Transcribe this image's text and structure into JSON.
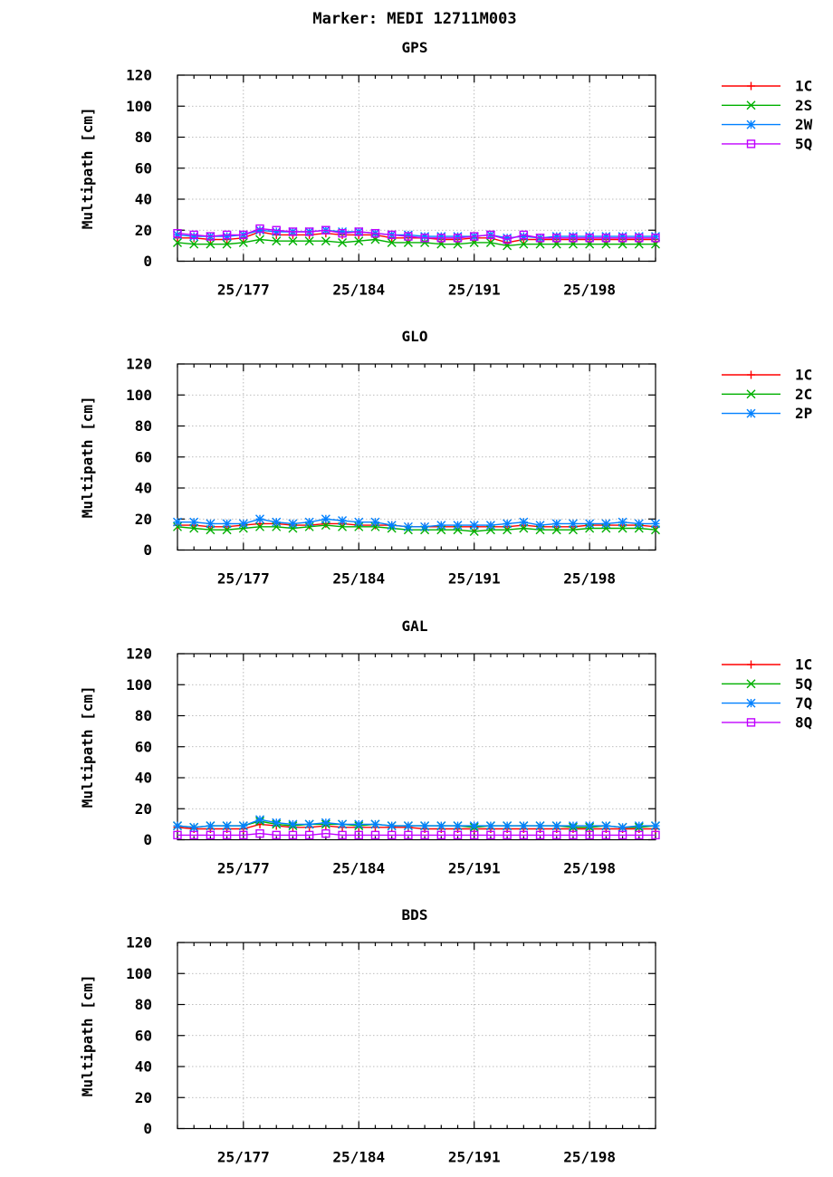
{
  "title": "Marker: MEDI 12711M003",
  "x_tick_labels": [
    "25/177",
    "25/184",
    "25/191",
    "25/198"
  ],
  "chart_data": [
    {
      "type": "line",
      "title": "GPS",
      "ylabel": "Multipath [cm]",
      "ylim": [
        0,
        120
      ],
      "yticks": [
        0,
        20,
        40,
        60,
        80,
        100,
        120
      ],
      "x_range": [
        173,
        202
      ],
      "x_ticks": [
        177,
        184,
        191,
        198
      ],
      "grid": true,
      "legend_position": "right",
      "series": [
        {
          "name": "1C",
          "color": "#ff0000",
          "marker": "plus",
          "x": [
            173,
            174,
            175,
            176,
            177,
            178,
            179,
            180,
            181,
            182,
            183,
            184,
            185,
            186,
            187,
            188,
            189,
            190,
            191,
            192,
            193,
            194,
            195,
            196,
            197,
            198,
            199,
            200,
            201,
            202
          ],
          "values": [
            15,
            15,
            14,
            14,
            15,
            19,
            17,
            17,
            17,
            18,
            17,
            17,
            17,
            15,
            15,
            15,
            14,
            14,
            15,
            15,
            12,
            14,
            14,
            14,
            14,
            14,
            14,
            14,
            14,
            14
          ]
        },
        {
          "name": "2S",
          "color": "#00b000",
          "marker": "x",
          "x": [
            173,
            174,
            175,
            176,
            177,
            178,
            179,
            180,
            181,
            182,
            183,
            184,
            185,
            186,
            187,
            188,
            189,
            190,
            191,
            192,
            193,
            194,
            195,
            196,
            197,
            198,
            199,
            200,
            201,
            202
          ],
          "values": [
            12,
            11,
            11,
            11,
            12,
            14,
            13,
            13,
            13,
            13,
            12,
            13,
            14,
            12,
            12,
            12,
            11,
            11,
            12,
            12,
            10,
            11,
            11,
            11,
            11,
            11,
            11,
            11,
            11,
            11
          ]
        },
        {
          "name": "2W",
          "color": "#0080ff",
          "marker": "star",
          "x": [
            173,
            174,
            175,
            176,
            177,
            178,
            179,
            180,
            181,
            182,
            183,
            184,
            185,
            186,
            187,
            188,
            189,
            190,
            191,
            192,
            193,
            194,
            195,
            196,
            197,
            198,
            199,
            200,
            201,
            202
          ],
          "values": [
            17,
            16,
            16,
            16,
            17,
            20,
            19,
            19,
            19,
            20,
            19,
            19,
            18,
            17,
            17,
            16,
            16,
            16,
            16,
            17,
            15,
            16,
            15,
            16,
            16,
            16,
            16,
            16,
            16,
            16
          ]
        },
        {
          "name": "5Q",
          "color": "#c000ff",
          "marker": "square",
          "x": [
            173,
            174,
            175,
            176,
            177,
            178,
            179,
            180,
            181,
            182,
            183,
            184,
            185,
            186,
            187,
            188,
            189,
            190,
            191,
            192,
            193,
            194,
            195,
            196,
            197,
            198,
            199,
            200,
            201,
            202
          ],
          "values": [
            18,
            17,
            16,
            17,
            17,
            21,
            20,
            19,
            19,
            20,
            18,
            19,
            18,
            17,
            16,
            15,
            15,
            15,
            16,
            17,
            14,
            17,
            15,
            15,
            15,
            15,
            15,
            15,
            15,
            15
          ]
        }
      ]
    },
    {
      "type": "line",
      "title": "GLO",
      "ylabel": "Multipath [cm]",
      "ylim": [
        0,
        120
      ],
      "yticks": [
        0,
        20,
        40,
        60,
        80,
        100,
        120
      ],
      "x_range": [
        173,
        202
      ],
      "x_ticks": [
        177,
        184,
        191,
        198
      ],
      "grid": true,
      "legend_position": "right",
      "series": [
        {
          "name": "1C",
          "color": "#ff0000",
          "marker": "plus",
          "x": [
            173,
            174,
            175,
            176,
            177,
            178,
            179,
            180,
            181,
            182,
            183,
            184,
            185,
            186,
            187,
            188,
            189,
            190,
            191,
            192,
            193,
            194,
            195,
            196,
            197,
            198,
            199,
            200,
            201,
            202
          ],
          "values": [
            16,
            16,
            15,
            15,
            16,
            17,
            17,
            16,
            16,
            17,
            17,
            16,
            16,
            16,
            15,
            15,
            15,
            15,
            15,
            15,
            15,
            16,
            15,
            15,
            15,
            16,
            16,
            16,
            16,
            15
          ]
        },
        {
          "name": "2C",
          "color": "#00b000",
          "marker": "x",
          "x": [
            173,
            174,
            175,
            176,
            177,
            178,
            179,
            180,
            181,
            182,
            183,
            184,
            185,
            186,
            187,
            188,
            189,
            190,
            191,
            192,
            193,
            194,
            195,
            196,
            197,
            198,
            199,
            200,
            201,
            202
          ],
          "values": [
            15,
            14,
            13,
            13,
            14,
            15,
            15,
            14,
            15,
            16,
            15,
            15,
            15,
            14,
            13,
            13,
            13,
            13,
            12,
            13,
            13,
            14,
            13,
            13,
            13,
            14,
            14,
            14,
            14,
            13
          ]
        },
        {
          "name": "2P",
          "color": "#0080ff",
          "marker": "star",
          "x": [
            173,
            174,
            175,
            176,
            177,
            178,
            179,
            180,
            181,
            182,
            183,
            184,
            185,
            186,
            187,
            188,
            189,
            190,
            191,
            192,
            193,
            194,
            195,
            196,
            197,
            198,
            199,
            200,
            201,
            202
          ],
          "values": [
            18,
            18,
            17,
            17,
            17,
            20,
            18,
            17,
            18,
            20,
            19,
            18,
            18,
            16,
            15,
            15,
            16,
            16,
            16,
            16,
            17,
            18,
            16,
            17,
            17,
            17,
            17,
            18,
            17,
            17
          ]
        }
      ]
    },
    {
      "type": "line",
      "title": "GAL",
      "ylabel": "Multipath [cm]",
      "ylim": [
        0,
        120
      ],
      "yticks": [
        0,
        20,
        40,
        60,
        80,
        100,
        120
      ],
      "x_range": [
        173,
        202
      ],
      "x_ticks": [
        177,
        184,
        191,
        198
      ],
      "grid": true,
      "legend_position": "right",
      "series": [
        {
          "name": "1C",
          "color": "#ff0000",
          "marker": "plus",
          "x": [
            173,
            174,
            175,
            176,
            177,
            178,
            179,
            180,
            181,
            182,
            183,
            184,
            185,
            186,
            187,
            188,
            189,
            190,
            191,
            192,
            193,
            194,
            195,
            196,
            197,
            198,
            199,
            200,
            201,
            202
          ],
          "values": [
            8,
            7,
            7,
            7,
            7,
            10,
            9,
            8,
            8,
            9,
            8,
            8,
            8,
            8,
            8,
            7,
            7,
            7,
            7,
            7,
            7,
            7,
            7,
            7,
            7,
            7,
            7,
            7,
            7,
            7
          ]
        },
        {
          "name": "5Q",
          "color": "#00b000",
          "marker": "x",
          "x": [
            173,
            174,
            175,
            176,
            177,
            178,
            179,
            180,
            181,
            182,
            183,
            184,
            185,
            186,
            187,
            188,
            189,
            190,
            191,
            192,
            193,
            194,
            195,
            196,
            197,
            198,
            199,
            200,
            201,
            202
          ],
          "values": [
            9,
            8,
            9,
            9,
            9,
            12,
            10,
            9,
            10,
            10,
            10,
            9,
            10,
            9,
            9,
            9,
            9,
            9,
            8,
            9,
            9,
            9,
            9,
            9,
            8,
            8,
            9,
            8,
            8,
            9
          ]
        },
        {
          "name": "7Q",
          "color": "#0080ff",
          "marker": "star",
          "x": [
            173,
            174,
            175,
            176,
            177,
            178,
            179,
            180,
            181,
            182,
            183,
            184,
            185,
            186,
            187,
            188,
            189,
            190,
            191,
            192,
            193,
            194,
            195,
            196,
            197,
            198,
            199,
            200,
            201,
            202
          ],
          "values": [
            9,
            8,
            9,
            9,
            9,
            13,
            11,
            10,
            10,
            11,
            10,
            10,
            10,
            9,
            9,
            9,
            9,
            9,
            9,
            9,
            9,
            9,
            9,
            9,
            9,
            9,
            9,
            8,
            9,
            9
          ]
        },
        {
          "name": "8Q",
          "color": "#c000ff",
          "marker": "square",
          "x": [
            173,
            174,
            175,
            176,
            177,
            178,
            179,
            180,
            181,
            182,
            183,
            184,
            185,
            186,
            187,
            188,
            189,
            190,
            191,
            192,
            193,
            194,
            195,
            196,
            197,
            198,
            199,
            200,
            201,
            202
          ],
          "values": [
            3,
            3,
            3,
            3,
            3,
            4,
            3,
            3,
            3,
            4,
            3,
            3,
            3,
            3,
            3,
            3,
            3,
            3,
            3,
            3,
            3,
            3,
            3,
            3,
            3,
            3,
            3,
            3,
            3,
            3
          ]
        }
      ]
    },
    {
      "type": "line",
      "title": "BDS",
      "ylabel": "Multipath [cm]",
      "ylim": [
        0,
        120
      ],
      "yticks": [
        0,
        20,
        40,
        60,
        80,
        100,
        120
      ],
      "x_range": [
        173,
        202
      ],
      "x_ticks": [
        177,
        184,
        191,
        198
      ],
      "grid": true,
      "legend_position": "right",
      "series": []
    }
  ]
}
